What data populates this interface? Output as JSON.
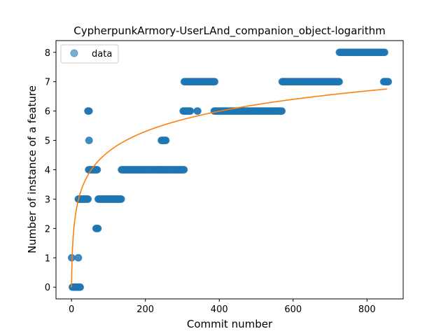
{
  "chart_data": {
    "type": "scatter",
    "title": "CypherpunkArmory-UserLAnd_companion_object-logarithm",
    "xlabel": "Commit number",
    "ylabel": "Number of instance of a feature",
    "xlim": [
      -42,
      898
    ],
    "ylim": [
      -0.4,
      8.4
    ],
    "xticks": [
      0,
      200,
      400,
      600,
      800
    ],
    "yticks": [
      0,
      1,
      2,
      3,
      4,
      5,
      6,
      7,
      8
    ],
    "legend": {
      "position": "top-left",
      "entries": [
        "data"
      ]
    },
    "colors": {
      "data": "#1f77b4",
      "fit": "#ff7f0e"
    },
    "series": [
      {
        "name": "data",
        "kind": "scatter",
        "segments": [
          {
            "x": [
              0,
              1
            ],
            "y": 1
          },
          {
            "x": [
              2,
              24
            ],
            "y": 0
          },
          {
            "x": [
              18,
              19
            ],
            "y": 1
          },
          {
            "x": [
              18,
              45
            ],
            "y": 3
          },
          {
            "x": [
              44,
              48
            ],
            "y": 6
          },
          {
            "x": [
              47,
              48
            ],
            "y": 5
          },
          {
            "x": [
              46,
              70
            ],
            "y": 4
          },
          {
            "x": [
              66,
              72
            ],
            "y": 2
          },
          {
            "x": [
              72,
              135
            ],
            "y": 3
          },
          {
            "x": [
              135,
              240
            ],
            "y": 4
          },
          {
            "x": [
              243,
              256
            ],
            "y": 5
          },
          {
            "x": [
              240,
              305
            ],
            "y": 4
          },
          {
            "x": [
              302,
              322
            ],
            "y": 6
          },
          {
            "x": [
              305,
              310
            ],
            "y": 7
          },
          {
            "x": [
              312,
              388
            ],
            "y": 7
          },
          {
            "x": [
              340,
              342
            ],
            "y": 6
          },
          {
            "x": [
              386,
              570
            ],
            "y": 6
          },
          {
            "x": [
              570,
              725
            ],
            "y": 7
          },
          {
            "x": [
              725,
              848
            ],
            "y": 8
          },
          {
            "x": [
              845,
              858
            ],
            "y": 7
          }
        ]
      },
      {
        "name": "fit",
        "kind": "line",
        "model": "y = a + b*ln(x+1)",
        "a": 0.0,
        "b": 1.0,
        "x_range": [
          0,
          855
        ]
      }
    ]
  }
}
